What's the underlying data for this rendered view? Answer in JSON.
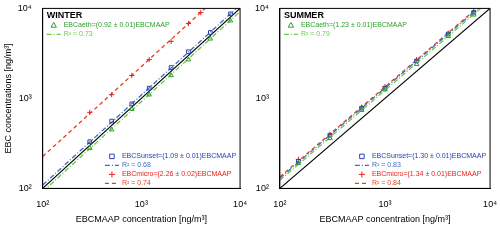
{
  "chart_data": [
    {
      "type": "scatter",
      "title": "WINTER",
      "x_label": "EBCMAAP concentration [ng/m³]",
      "y_label": "EBC concentrations [ng/m³]",
      "log": true,
      "grid": false,
      "xlim": [
        100,
        10000
      ],
      "ylim": [
        100,
        10000
      ],
      "xticks": [
        {
          "value": 100,
          "label": "10²"
        },
        {
          "value": 1000,
          "label": "10³"
        },
        {
          "value": 10000,
          "label": "10⁴"
        }
      ],
      "yticks": [
        {
          "value": 100,
          "label": "10²"
        },
        {
          "value": 1000,
          "label": "10³"
        },
        {
          "value": 10000,
          "label": "10⁴"
        }
      ],
      "series": [
        {
          "name": "EBCaeth=(0.92 ± 0.01)EBCMAAP",
          "type": "scatter",
          "marker": "triangle",
          "color": "#2e9e2e",
          "legend": "top-left",
          "values": [
            [
              300,
              280
            ],
            [
              500,
              450
            ],
            [
              800,
              760
            ],
            [
              1200,
              1100
            ],
            [
              2000,
              1800
            ],
            [
              3000,
              2700
            ],
            [
              5000,
              4600
            ],
            [
              8000,
              7300
            ]
          ]
        },
        {
          "name": "R² = 0.73",
          "type": "line",
          "line_style": "dashdot",
          "color": "#66cc44",
          "legend": "top-left",
          "values": [
            [
              100,
              92
            ],
            [
              10000,
              9200
            ]
          ]
        },
        {
          "name": "EBCSunset=(1.09 ± 0.01)EBCMAAP",
          "type": "scatter",
          "marker": "square",
          "color": "#2a40b0",
          "legend": "bottom-right",
          "values": [
            [
              300,
              330
            ],
            [
              500,
              560
            ],
            [
              800,
              870
            ],
            [
              1200,
              1300
            ],
            [
              2000,
              2200
            ],
            [
              3000,
              3300
            ],
            [
              5000,
              5400
            ],
            [
              8000,
              8700
            ]
          ]
        },
        {
          "name": "R² = 0.68",
          "type": "line",
          "line_style": "dashdot",
          "color": "#3a70c0",
          "legend": "bottom-right",
          "values": [
            [
              100,
              109
            ],
            [
              10000,
              10900
            ]
          ]
        },
        {
          "name": "EBCmicro=(2.26 ± 0.02)EBCMAAP",
          "type": "scatter",
          "marker": "plus",
          "color": "#e8201c",
          "legend": "bottom-right",
          "values": [
            [
              300,
              700
            ],
            [
              500,
              1100
            ],
            [
              800,
              1800
            ],
            [
              1200,
              2700
            ],
            [
              2000,
              4300
            ],
            [
              3000,
              6800
            ],
            [
              4000,
              9000
            ]
          ]
        },
        {
          "name": "R² = 0.74",
          "type": "line",
          "line_style": "dashed",
          "color": "#e8401c",
          "legend": "bottom-right",
          "values": [
            [
              100,
              226
            ],
            [
              10000,
              22600
            ]
          ]
        },
        {
          "type": "line",
          "line_style": "solid",
          "color": "#000000",
          "values": [
            [
              100,
              100
            ],
            [
              10000,
              10000
            ]
          ]
        }
      ]
    },
    {
      "type": "scatter",
      "title": "SUMMER",
      "x_label": "EBCMAAP concentration [ng/m³]",
      "log": true,
      "grid": false,
      "xlim": [
        100,
        10000
      ],
      "ylim": [
        100,
        10000
      ],
      "xticks": [
        {
          "value": 100,
          "label": "10²"
        },
        {
          "value": 1000,
          "label": "10³"
        },
        {
          "value": 10000,
          "label": "10⁴"
        }
      ],
      "yticks": [
        {
          "value": 100,
          "label": "10²"
        },
        {
          "value": 1000,
          "label": "10³"
        },
        {
          "value": 10000,
          "label": "10⁴"
        }
      ],
      "series": [
        {
          "name": "EBCaeth=(1.23 ± 0.01)EBCMAAP",
          "type": "scatter",
          "marker": "triangle",
          "color": "#2e9e2e",
          "legend": "top-left",
          "values": [
            [
              150,
              190
            ],
            [
              300,
              360
            ],
            [
              600,
              740
            ],
            [
              1000,
              1250
            ],
            [
              2000,
              2400
            ],
            [
              4000,
              4900
            ],
            [
              7000,
              8500
            ]
          ]
        },
        {
          "name": "R² = 0.79",
          "type": "line",
          "line_style": "dashdot",
          "color": "#66cc44",
          "legend": "top-left",
          "values": [
            [
              100,
              123
            ],
            [
              10000,
              12300
            ]
          ]
        },
        {
          "name": "EBCSunset=(1.30 ± 0.01)EBCMAAP",
          "type": "scatter",
          "marker": "square",
          "color": "#2a40b0",
          "legend": "bottom-right",
          "values": [
            [
              150,
              200
            ],
            [
              300,
              390
            ],
            [
              600,
              780
            ],
            [
              1000,
              1300
            ],
            [
              2000,
              2600
            ],
            [
              4000,
              5200
            ],
            [
              7000,
              9000
            ]
          ]
        },
        {
          "name": "R² = 0.83",
          "type": "line",
          "line_style": "dashdot",
          "color": "#3a70c0",
          "legend": "bottom-right",
          "values": [
            [
              100,
              130
            ],
            [
              10000,
              13000
            ]
          ]
        },
        {
          "name": "EBCmicro=(1.34 ± 0.01)EBCMAAP",
          "type": "scatter",
          "marker": "plus",
          "color": "#e8201c",
          "legend": "bottom-right",
          "values": [
            [
              150,
              210
            ],
            [
              300,
              400
            ],
            [
              600,
              800
            ],
            [
              1000,
              1350
            ],
            [
              2000,
              2700
            ],
            [
              4000,
              5300
            ],
            [
              7000,
              9300
            ]
          ]
        },
        {
          "name": "R² = 0.84",
          "type": "line",
          "line_style": "dashed",
          "color": "#e8401c",
          "legend": "bottom-right",
          "values": [
            [
              100,
              134
            ],
            [
              10000,
              13400
            ]
          ]
        },
        {
          "type": "line",
          "line_style": "solid",
          "color": "#000000",
          "values": [
            [
              100,
              100
            ],
            [
              10000,
              10000
            ]
          ]
        }
      ]
    }
  ]
}
